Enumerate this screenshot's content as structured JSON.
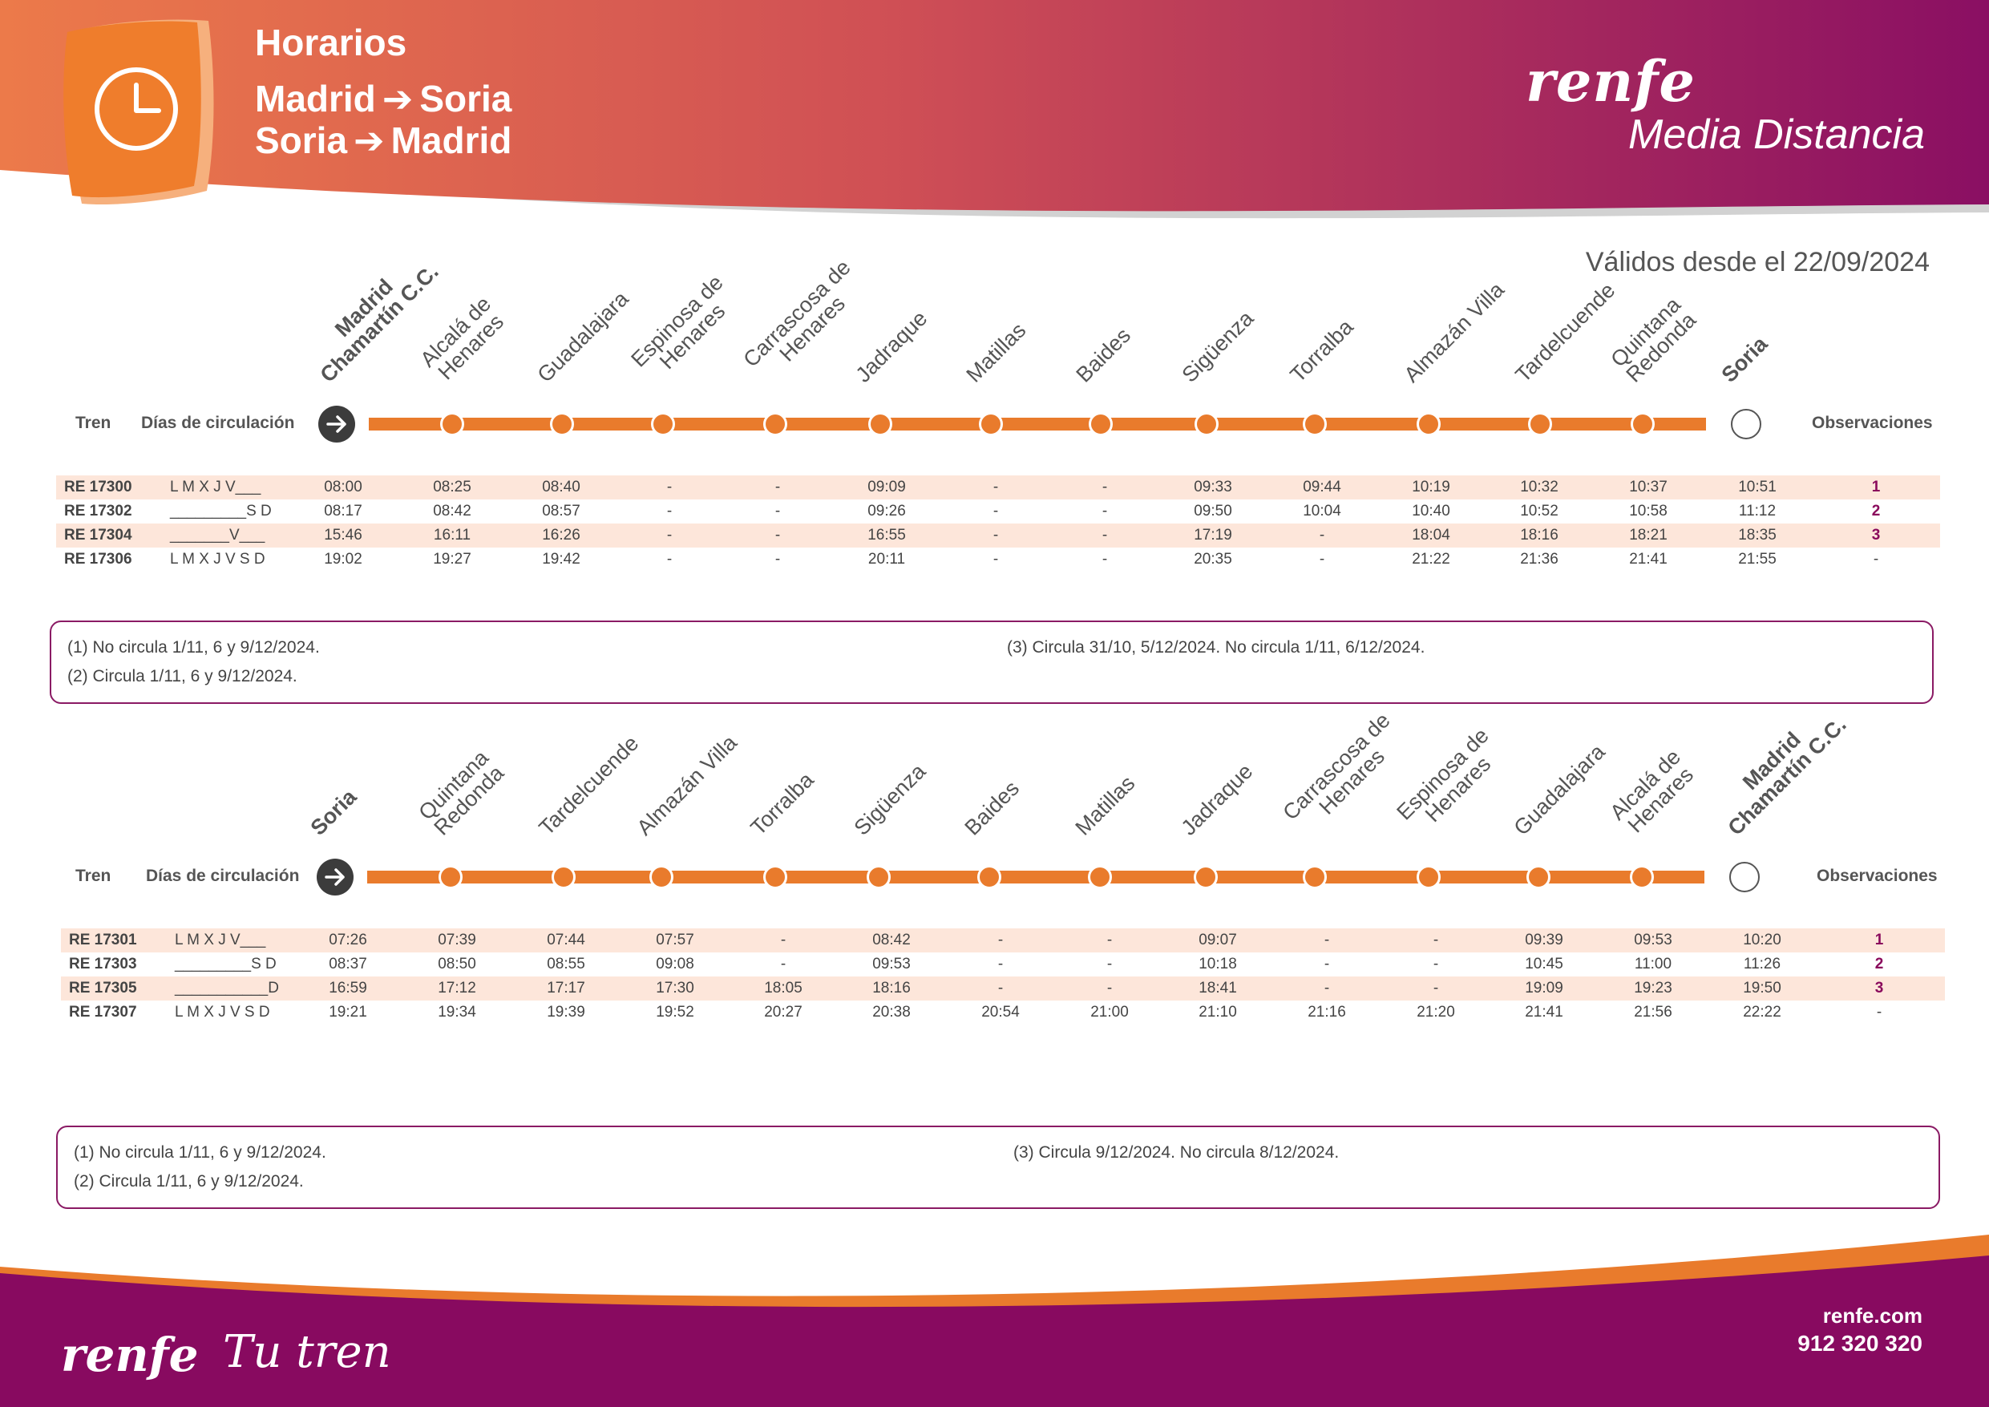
{
  "header": {
    "title": "Horarios",
    "route_1": {
      "from": "Madrid",
      "to": "Soria"
    },
    "route_2": {
      "from": "Soria",
      "to": "Madrid"
    },
    "arrow": "➔",
    "brand": "renfe",
    "brand_sub": "Media Distancia",
    "icon": "clock-icon"
  },
  "validity": "Válidos desde el 22/09/2024",
  "colors": {
    "orange": "#e97b2c",
    "purple": "#8a0a5c",
    "row_shade": "#fde6da"
  },
  "labels": {
    "tren": "Tren",
    "dias": "Días de circulación",
    "observaciones": "Observaciones"
  },
  "outbound": {
    "stations": [
      [
        "Madrid",
        "Chamartín C.C."
      ],
      [
        "Alcalá de",
        "Henares"
      ],
      [
        "Guadalajara"
      ],
      [
        "Espinosa de",
        "Henares"
      ],
      [
        "Carrascosa de",
        "Henares"
      ],
      [
        "Jadraque"
      ],
      [
        "Matillas"
      ],
      [
        "Baides"
      ],
      [
        "Sigüenza"
      ],
      [
        "Torralba"
      ],
      [
        "Almazán Villa"
      ],
      [
        "Tardelcuende"
      ],
      [
        "Quintana",
        "Redonda"
      ],
      [
        "Soria"
      ]
    ],
    "rows": [
      {
        "train": "RE 17300",
        "days": "L M X J V___",
        "times": [
          "08:00",
          "08:25",
          "08:40",
          "-",
          "-",
          "09:09",
          "-",
          "-",
          "09:33",
          "09:44",
          "10:19",
          "10:32",
          "10:37",
          "10:51"
        ],
        "obs": "1"
      },
      {
        "train": "RE 17302",
        "days": "_________S D",
        "times": [
          "08:17",
          "08:42",
          "08:57",
          "-",
          "-",
          "09:26",
          "-",
          "-",
          "09:50",
          "10:04",
          "10:40",
          "10:52",
          "10:58",
          "11:12"
        ],
        "obs": "2"
      },
      {
        "train": "RE 17304",
        "days": "_______V___",
        "times": [
          "15:46",
          "16:11",
          "16:26",
          "-",
          "-",
          "16:55",
          "-",
          "-",
          "17:19",
          "-",
          "18:04",
          "18:16",
          "18:21",
          "18:35"
        ],
        "obs": "3"
      },
      {
        "train": "RE 17306",
        "days": "L M X J V S D",
        "times": [
          "19:02",
          "19:27",
          "19:42",
          "-",
          "-",
          "20:11",
          "-",
          "-",
          "20:35",
          "-",
          "21:22",
          "21:36",
          "21:41",
          "21:55"
        ],
        "obs": "-"
      }
    ],
    "notes": [
      "(1) No circula 1/11, 6 y 9/12/2024.",
      "(2) Circula 1/11, 6 y 9/12/2024.",
      "(3) Circula 31/10, 5/12/2024. No circula  1/11, 6/12/2024."
    ]
  },
  "return": {
    "stations": [
      [
        "Soria"
      ],
      [
        "Quintana",
        "Redonda"
      ],
      [
        "Tardelcuende"
      ],
      [
        "Almazán Villa"
      ],
      [
        "Torralba"
      ],
      [
        "Sigüenza"
      ],
      [
        "Baides"
      ],
      [
        "Matillas"
      ],
      [
        "Jadraque"
      ],
      [
        "Carrascosa de",
        "Henares"
      ],
      [
        "Espinosa de",
        "Henares"
      ],
      [
        "Guadalajara"
      ],
      [
        "Alcalá de",
        "Henares"
      ],
      [
        "Madrid",
        "Chamartín C.C."
      ]
    ],
    "rows": [
      {
        "train": "RE 17301",
        "days": "L M X J V___",
        "times": [
          "07:26",
          "07:39",
          "07:44",
          "07:57",
          "-",
          "08:42",
          "-",
          "-",
          "09:07",
          "-",
          "-",
          "09:39",
          "09:53",
          "10:20"
        ],
        "obs": "1"
      },
      {
        "train": "RE 17303",
        "days": "_________S D",
        "times": [
          "08:37",
          "08:50",
          "08:55",
          "09:08",
          "-",
          "09:53",
          "-",
          "-",
          "10:18",
          "-",
          "-",
          "10:45",
          "11:00",
          "11:26"
        ],
        "obs": "2"
      },
      {
        "train": "RE 17305",
        "days": "___________D",
        "times": [
          "16:59",
          "17:12",
          "17:17",
          "17:30",
          "18:05",
          "18:16",
          "-",
          "-",
          "18:41",
          "-",
          "-",
          "19:09",
          "19:23",
          "19:50"
        ],
        "obs": "3"
      },
      {
        "train": "RE 17307",
        "days": "L M X J V S D",
        "times": [
          "19:21",
          "19:34",
          "19:39",
          "19:52",
          "20:27",
          "20:38",
          "20:54",
          "21:00",
          "21:10",
          "21:16",
          "21:20",
          "21:41",
          "21:56",
          "22:22"
        ],
        "obs": "-"
      }
    ],
    "notes": [
      "(1) No circula 1/11, 6 y 9/12/2024.",
      "(2) Circula 1/11, 6 y 9/12/2024.",
      "(3) Circula 9/12/2024. No circula 8/12/2024."
    ]
  },
  "footer": {
    "brand": "renfe",
    "slogan": "Tu tren",
    "web": "renfe.com",
    "phone": "912 320 320"
  }
}
